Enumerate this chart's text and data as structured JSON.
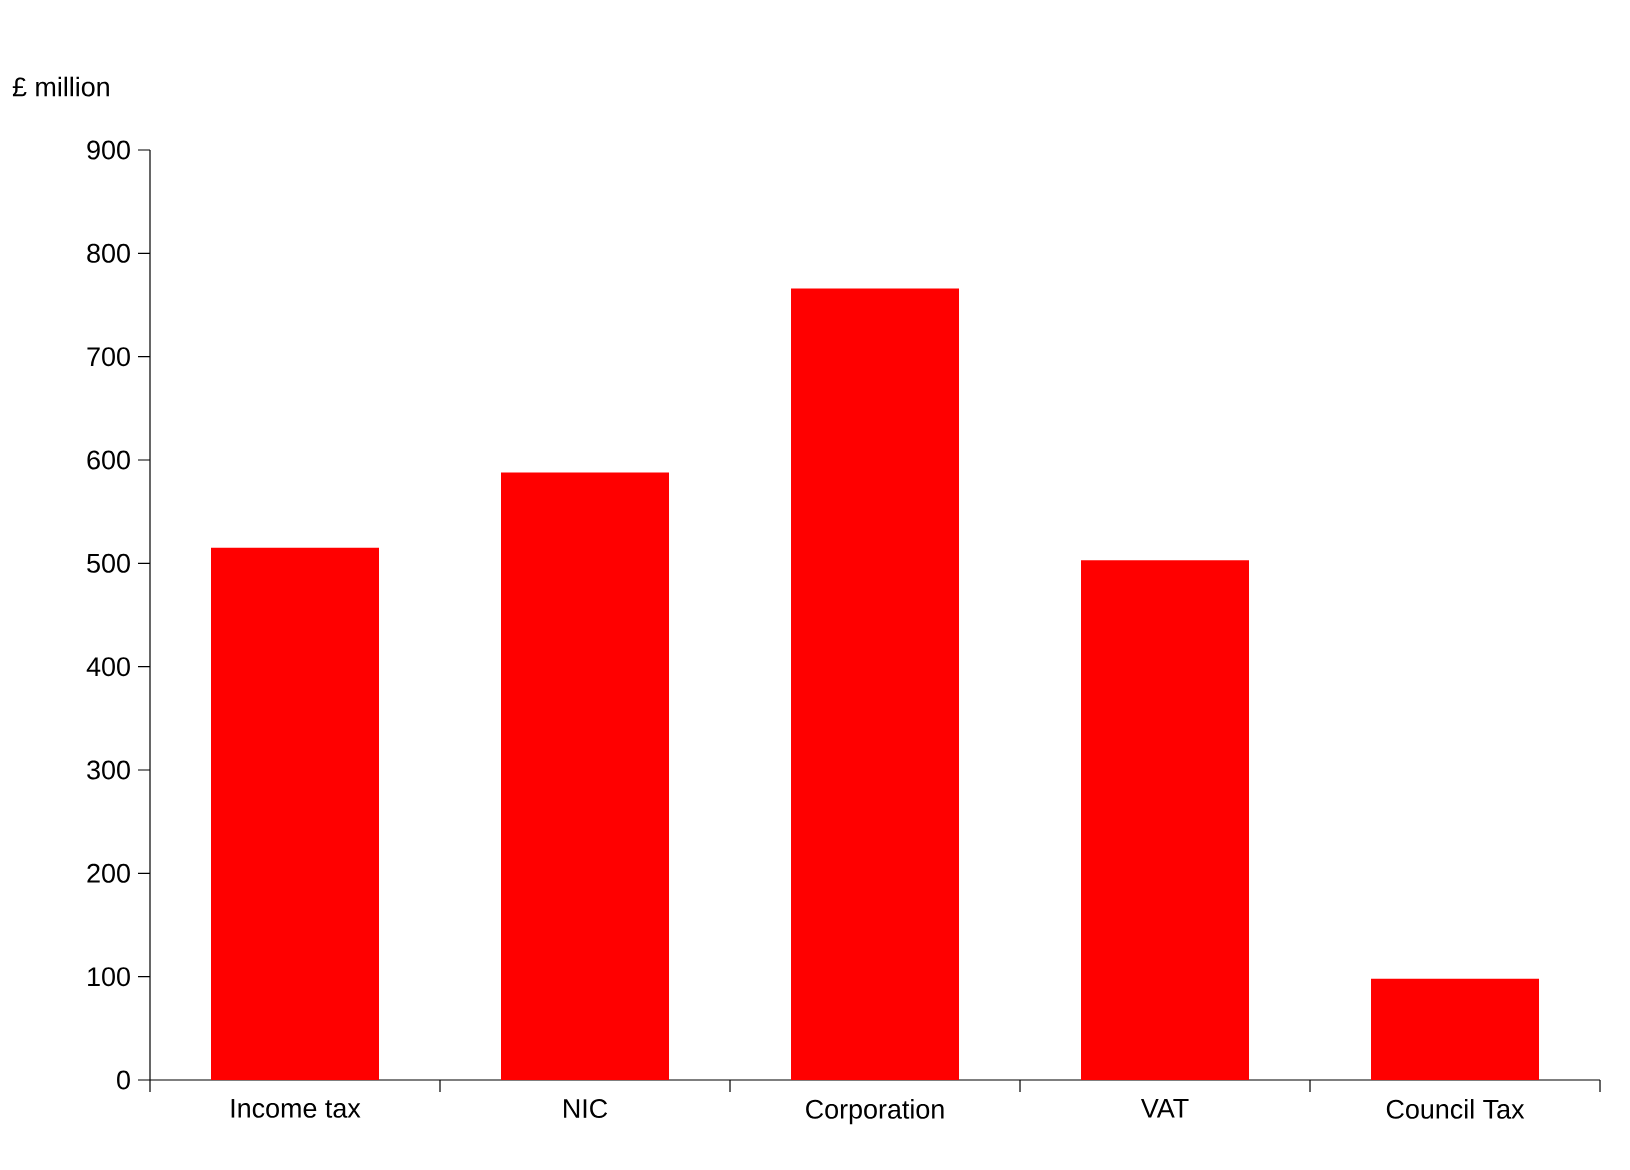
{
  "chart_data": {
    "type": "bar",
    "ylabel": "£ million",
    "categories": [
      "Income tax",
      "NIC",
      "Corporation",
      "VAT",
      "Council Tax"
    ],
    "values": [
      515,
      588,
      766,
      503,
      98
    ],
    "color": "#ff0000",
    "ylim": [
      0,
      900
    ],
    "yticks": [
      0,
      100,
      200,
      300,
      400,
      500,
      600,
      700,
      800,
      900
    ],
    "grid": false
  }
}
